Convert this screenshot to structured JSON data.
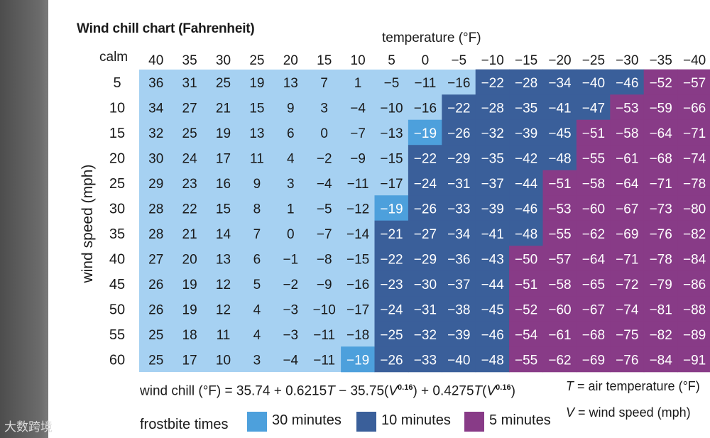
{
  "chart_data": {
    "type": "table",
    "title": "Wind chill chart (Fahrenheit)",
    "xlabel": "temperature (°F)",
    "ylabel": "wind speed (mph)",
    "x_label_calm": "calm",
    "temperatures": [
      "40",
      "35",
      "30",
      "25",
      "20",
      "15",
      "10",
      "5",
      "0",
      "−5",
      "−10",
      "−15",
      "−20",
      "−25",
      "−30",
      "−35",
      "−40"
    ],
    "wind_speeds": [
      "5",
      "10",
      "15",
      "20",
      "25",
      "30",
      "35",
      "40",
      "45",
      "50",
      "55",
      "60"
    ],
    "rows": [
      [
        "36",
        "31",
        "25",
        "19",
        "13",
        "7",
        "1",
        "−5",
        "−11",
        "−16",
        "−22",
        "−28",
        "−34",
        "−40",
        "−46",
        "−52",
        "−57"
      ],
      [
        "34",
        "27",
        "21",
        "15",
        "9",
        "3",
        "−4",
        "−10",
        "−16",
        "−22",
        "−28",
        "−35",
        "−41",
        "−47",
        "−53",
        "−59",
        "−66"
      ],
      [
        "32",
        "25",
        "19",
        "13",
        "6",
        "0",
        "−7",
        "−13",
        "−19",
        "−26",
        "−32",
        "−39",
        "−45",
        "−51",
        "−58",
        "−64",
        "−71"
      ],
      [
        "30",
        "24",
        "17",
        "11",
        "4",
        "−2",
        "−9",
        "−15",
        "−22",
        "−29",
        "−35",
        "−42",
        "−48",
        "−55",
        "−61",
        "−68",
        "−74"
      ],
      [
        "29",
        "23",
        "16",
        "9",
        "3",
        "−4",
        "−11",
        "−17",
        "−24",
        "−31",
        "−37",
        "−44",
        "−51",
        "−58",
        "−64",
        "−71",
        "−78"
      ],
      [
        "28",
        "22",
        "15",
        "8",
        "1",
        "−5",
        "−12",
        "−19",
        "−26",
        "−33",
        "−39",
        "−46",
        "−53",
        "−60",
        "−67",
        "−73",
        "−80"
      ],
      [
        "28",
        "21",
        "14",
        "7",
        "0",
        "−7",
        "−14",
        "−21",
        "−27",
        "−34",
        "−41",
        "−48",
        "−55",
        "−62",
        "−69",
        "−76",
        "−82"
      ],
      [
        "27",
        "20",
        "13",
        "6",
        "−1",
        "−8",
        "−15",
        "−22",
        "−29",
        "−36",
        "−43",
        "−50",
        "−57",
        "−64",
        "−71",
        "−78",
        "−84"
      ],
      [
        "26",
        "19",
        "12",
        "5",
        "−2",
        "−9",
        "−16",
        "−23",
        "−30",
        "−37",
        "−44",
        "−51",
        "−58",
        "−65",
        "−72",
        "−79",
        "−86"
      ],
      [
        "26",
        "19",
        "12",
        "4",
        "−3",
        "−10",
        "−17",
        "−24",
        "−31",
        "−38",
        "−45",
        "−52",
        "−60",
        "−67",
        "−74",
        "−81",
        "−88"
      ],
      [
        "25",
        "18",
        "11",
        "4",
        "−3",
        "−11",
        "−18",
        "−25",
        "−32",
        "−39",
        "−46",
        "−54",
        "−61",
        "−68",
        "−75",
        "−82",
        "−89"
      ],
      [
        "25",
        "17",
        "10",
        "3",
        "−4",
        "−11",
        "−19",
        "−26",
        "−33",
        "−40",
        "−48",
        "−55",
        "−62",
        "−69",
        "−76",
        "−84",
        "−91"
      ]
    ],
    "zones": [
      {
        "label": "30 minutes",
        "color": "#4da0dc",
        "max_value": -19
      },
      {
        "label": "10 minutes",
        "color": "#3a5f9a",
        "max_value": -48
      },
      {
        "label": "5 minutes",
        "color": "#883b87"
      }
    ],
    "background_color": "#a6d1f2"
  },
  "formula": {
    "lhs": "wind chill (°F) = 35.74 + 0.6215",
    "t1": "T",
    "mid1": " − 35.75(",
    "v1": "V",
    "exp1": "0.16",
    "mid2": ") + 0.4275",
    "t2": "T",
    "mid3": "(",
    "v2": "V",
    "exp2": "0.16",
    "end": ")"
  },
  "definitions": {
    "t_symbol": "T",
    "t_text": " = air temperature (°F)",
    "v_symbol": "V",
    "v_text": " = wind speed (mph)"
  },
  "legend": {
    "title": "frostbite times"
  },
  "watermark": "大数跨境"
}
